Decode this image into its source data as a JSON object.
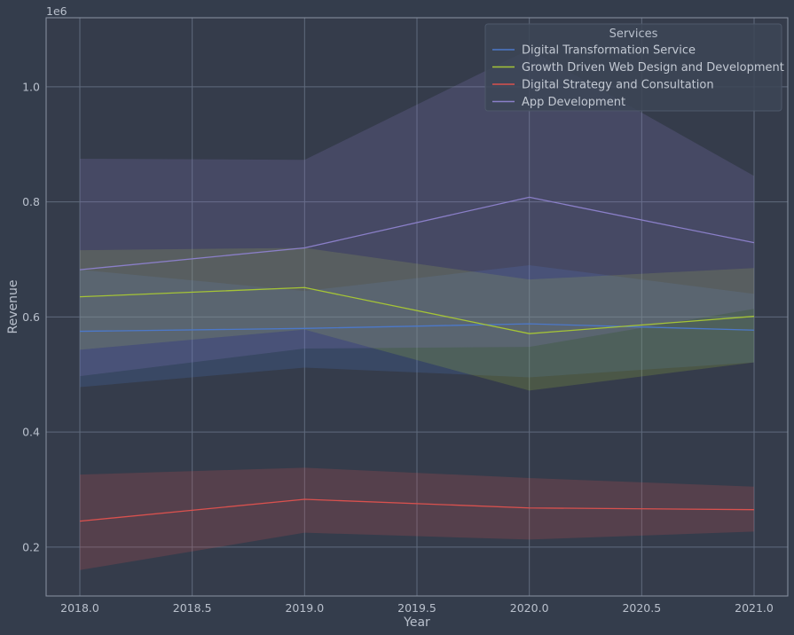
{
  "chart_data": {
    "type": "line",
    "xlabel": "Year",
    "ylabel": "Revenue",
    "offset_text": "1e6",
    "x": [
      2018,
      2019,
      2020,
      2021
    ],
    "xlim": [
      2017.85,
      2021.15
    ],
    "ylim": [
      0.115,
      1.12
    ],
    "y_scale": 1000000,
    "xticks": [
      2018.0,
      2018.5,
      2019.0,
      2019.5,
      2020.0,
      2020.5,
      2021.0
    ],
    "xtick_labels": [
      "2018.0",
      "2018.5",
      "2019.0",
      "2019.5",
      "2020.0",
      "2020.5",
      "2021.0"
    ],
    "yticks": [
      0.2,
      0.4,
      0.6,
      0.8,
      1.0
    ],
    "ytick_labels": [
      "0.2",
      "0.4",
      "0.6",
      "0.8",
      "1.0"
    ],
    "grid": true,
    "legend": {
      "title": "Services",
      "placement": "upper right"
    },
    "series": [
      {
        "name": "Digital Transformation Service",
        "color": "#4c78c9",
        "values": [
          575000,
          580000,
          588000,
          577000
        ],
        "lower": [
          478000,
          512000,
          495000,
          521000
        ],
        "upper": [
          682000,
          645000,
          690000,
          640000
        ]
      },
      {
        "name": "Growth Driven Web Design and Development",
        "color": "#a5c436",
        "values": [
          635000,
          651000,
          571000,
          601000
        ],
        "lower": [
          543000,
          578000,
          472000,
          521000
        ],
        "upper": [
          716000,
          720000,
          665000,
          685000
        ]
      },
      {
        "name": "Digital Strategy and Consultation",
        "color": "#d9514e",
        "values": [
          245000,
          283000,
          268000,
          265000
        ],
        "lower": [
          160000,
          225000,
          213000,
          227000
        ],
        "upper": [
          326000,
          338000,
          320000,
          305000
        ]
      },
      {
        "name": "App Development",
        "color": "#8a7fc8",
        "values": [
          682000,
          720000,
          808000,
          729000
        ],
        "lower": [
          497000,
          545000,
          548000,
          614000
        ],
        "upper": [
          875000,
          873000,
          1065000,
          845000
        ]
      }
    ]
  }
}
